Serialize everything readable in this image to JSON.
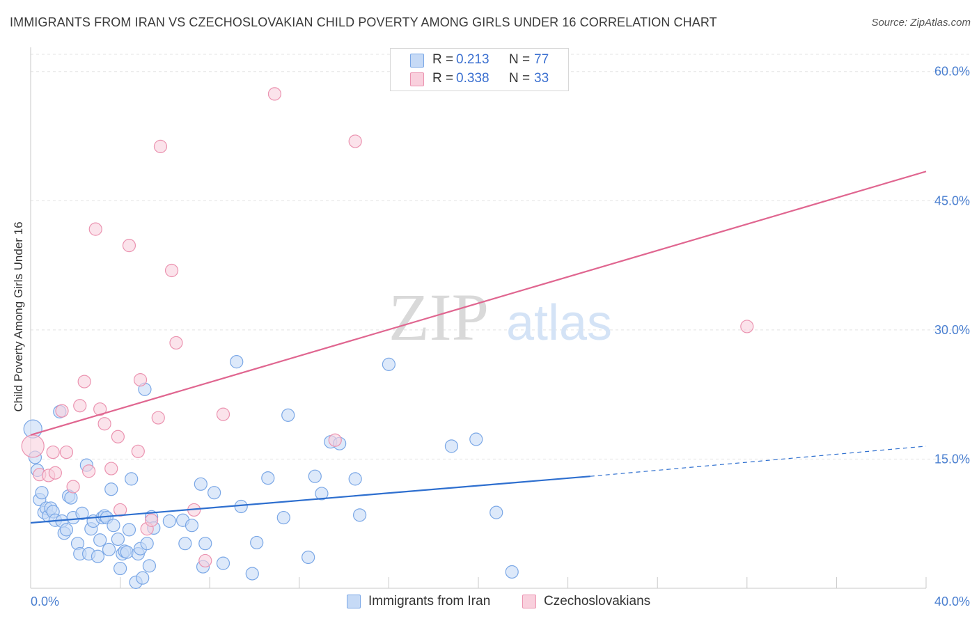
{
  "title": "IMMIGRANTS FROM IRAN VS CZECHOSLOVAKIAN CHILD POVERTY AMONG GIRLS UNDER 16 CORRELATION CHART",
  "source": "Source: ZipAtlas.com",
  "watermark": {
    "zip": "ZIP",
    "atlas": "atlas"
  },
  "legend": {
    "rows": [
      {
        "r_label": "R =",
        "r_value": "0.213",
        "n_label": "N =",
        "n_value": "77",
        "color": "#7aa7e6",
        "fill": "#c6daf6"
      },
      {
        "r_label": "R =",
        "r_value": "0.338",
        "n_label": "N =",
        "n_value": "33",
        "color": "#eb93b0",
        "fill": "#f9d0dd"
      }
    ]
  },
  "bottom_legend": [
    {
      "label": "Immigrants from Iran",
      "color": "#7aa7e6",
      "fill": "#c6daf6"
    },
    {
      "label": "Czechoslovakians",
      "color": "#eb93b0",
      "fill": "#f9d0dd"
    }
  ],
  "chart_data": {
    "type": "scatter",
    "title": "IMMIGRANTS FROM IRAN VS CZECHOSLOVAKIAN CHILD POVERTY AMONG GIRLS UNDER 16 CORRELATION CHART",
    "xlabel": "",
    "ylabel": "Child Poverty Among Girls Under 16",
    "xlim": [
      0,
      40
    ],
    "ylim": [
      0,
      62
    ],
    "x_tick_labels": [
      "0.0%",
      "40.0%"
    ],
    "y_ticks": [
      15,
      30,
      45,
      60
    ],
    "y_tick_labels": [
      "15.0%",
      "30.0%",
      "45.0%",
      "60.0%"
    ],
    "grid": true,
    "series": [
      {
        "name": "Immigrants from Iran",
        "color": "#7aa7e6",
        "fill": "#c6daf6",
        "trend": {
          "x": [
            0,
            25
          ],
          "y": [
            7.6,
            13.0
          ],
          "dashed_to": [
            40,
            16.5
          ],
          "color": "#2e6fcf"
        },
        "points": [
          [
            0.1,
            18.5,
            13
          ],
          [
            0.2,
            15.2,
            9
          ],
          [
            0.3,
            13.7,
            9
          ],
          [
            0.4,
            10.3,
            9
          ],
          [
            0.5,
            11.1,
            9
          ],
          [
            0.6,
            8.8,
            9
          ],
          [
            0.7,
            9.3,
            9
          ],
          [
            0.8,
            8.4,
            9
          ],
          [
            0.9,
            9.3,
            9
          ],
          [
            1.0,
            8.9,
            9
          ],
          [
            1.1,
            7.9,
            9
          ],
          [
            1.3,
            20.5,
            9
          ],
          [
            1.4,
            7.8,
            9
          ],
          [
            1.5,
            6.4,
            9
          ],
          [
            1.6,
            6.8,
            9
          ],
          [
            1.7,
            10.7,
            9
          ],
          [
            1.8,
            10.5,
            9
          ],
          [
            1.9,
            8.2,
            9
          ],
          [
            2.1,
            5.2,
            9
          ],
          [
            2.2,
            4.0,
            9
          ],
          [
            2.3,
            8.7,
            9
          ],
          [
            2.5,
            14.3,
            9
          ],
          [
            2.6,
            4.0,
            9
          ],
          [
            2.7,
            6.9,
            9
          ],
          [
            2.8,
            7.8,
            9
          ],
          [
            3.0,
            3.7,
            9
          ],
          [
            3.1,
            5.6,
            9
          ],
          [
            3.2,
            8.2,
            9
          ],
          [
            3.3,
            8.4,
            9
          ],
          [
            3.4,
            8.2,
            9
          ],
          [
            3.5,
            4.5,
            9
          ],
          [
            3.6,
            11.5,
            9
          ],
          [
            3.7,
            7.3,
            9
          ],
          [
            3.9,
            5.7,
            9
          ],
          [
            4.0,
            2.3,
            9
          ],
          [
            4.1,
            4.0,
            9
          ],
          [
            4.2,
            4.3,
            9
          ],
          [
            4.3,
            4.2,
            9
          ],
          [
            4.4,
            6.8,
            9
          ],
          [
            4.5,
            12.7,
            9
          ],
          [
            4.7,
            0.7,
            9
          ],
          [
            4.8,
            4.0,
            9
          ],
          [
            4.9,
            4.6,
            9
          ],
          [
            5.0,
            1.2,
            9
          ],
          [
            5.1,
            23.1,
            9
          ],
          [
            5.2,
            5.2,
            9
          ],
          [
            5.3,
            2.6,
            9
          ],
          [
            5.4,
            8.3,
            9
          ],
          [
            5.5,
            7.0,
            9
          ],
          [
            6.2,
            7.8,
            9
          ],
          [
            6.8,
            7.9,
            9
          ],
          [
            6.9,
            5.2,
            9
          ],
          [
            7.2,
            7.3,
            9
          ],
          [
            7.6,
            12.1,
            9
          ],
          [
            7.7,
            2.5,
            9
          ],
          [
            7.8,
            5.2,
            9
          ],
          [
            8.2,
            11.1,
            9
          ],
          [
            8.6,
            2.9,
            9
          ],
          [
            9.2,
            26.3,
            9
          ],
          [
            9.4,
            9.5,
            9
          ],
          [
            9.9,
            1.7,
            9
          ],
          [
            10.1,
            5.3,
            9
          ],
          [
            10.6,
            12.8,
            9
          ],
          [
            11.3,
            8.2,
            9
          ],
          [
            11.5,
            20.1,
            9
          ],
          [
            12.4,
            3.6,
            9
          ],
          [
            12.7,
            13.0,
            9
          ],
          [
            13.0,
            11.0,
            9
          ],
          [
            13.4,
            17.0,
            9
          ],
          [
            13.8,
            16.8,
            9
          ],
          [
            14.5,
            12.7,
            9
          ],
          [
            14.7,
            8.5,
            9
          ],
          [
            16.0,
            26.0,
            9
          ],
          [
            18.8,
            16.5,
            9
          ],
          [
            19.9,
            17.3,
            9
          ],
          [
            20.8,
            8.8,
            9
          ],
          [
            21.5,
            1.9,
            9
          ]
        ]
      },
      {
        "name": "Czechoslovakians",
        "color": "#eb93b0",
        "fill": "#f9d0dd",
        "trend": {
          "x": [
            0,
            40
          ],
          "y": [
            17.8,
            48.4
          ],
          "color": "#e06690"
        },
        "points": [
          [
            0.1,
            16.5,
            16
          ],
          [
            0.4,
            13.2,
            9
          ],
          [
            0.8,
            13.1,
            9
          ],
          [
            1.0,
            15.8,
            9
          ],
          [
            1.4,
            20.6,
            9
          ],
          [
            1.6,
            15.8,
            9
          ],
          [
            1.9,
            11.8,
            9
          ],
          [
            2.2,
            21.2,
            9
          ],
          [
            2.4,
            24.0,
            9
          ],
          [
            2.6,
            13.6,
            9
          ],
          [
            2.9,
            41.7,
            9
          ],
          [
            3.1,
            20.8,
            9
          ],
          [
            3.3,
            19.1,
            9
          ],
          [
            3.6,
            13.9,
            9
          ],
          [
            3.9,
            17.6,
            9
          ],
          [
            4.0,
            9.1,
            9
          ],
          [
            4.4,
            39.8,
            9
          ],
          [
            4.8,
            15.9,
            9
          ],
          [
            4.9,
            24.2,
            9
          ],
          [
            5.2,
            6.9,
            9
          ],
          [
            5.4,
            7.9,
            9
          ],
          [
            5.7,
            19.8,
            9
          ],
          [
            5.8,
            51.3,
            9
          ],
          [
            6.3,
            36.9,
            9
          ],
          [
            6.5,
            28.5,
            9
          ],
          [
            7.3,
            9.1,
            9
          ],
          [
            7.8,
            3.2,
            9
          ],
          [
            8.6,
            20.2,
            9
          ],
          [
            10.9,
            57.4,
            9
          ],
          [
            13.6,
            17.2,
            9
          ],
          [
            14.5,
            51.9,
            9
          ],
          [
            32.0,
            30.4,
            9
          ],
          [
            1.1,
            13.4,
            9
          ]
        ]
      }
    ]
  }
}
